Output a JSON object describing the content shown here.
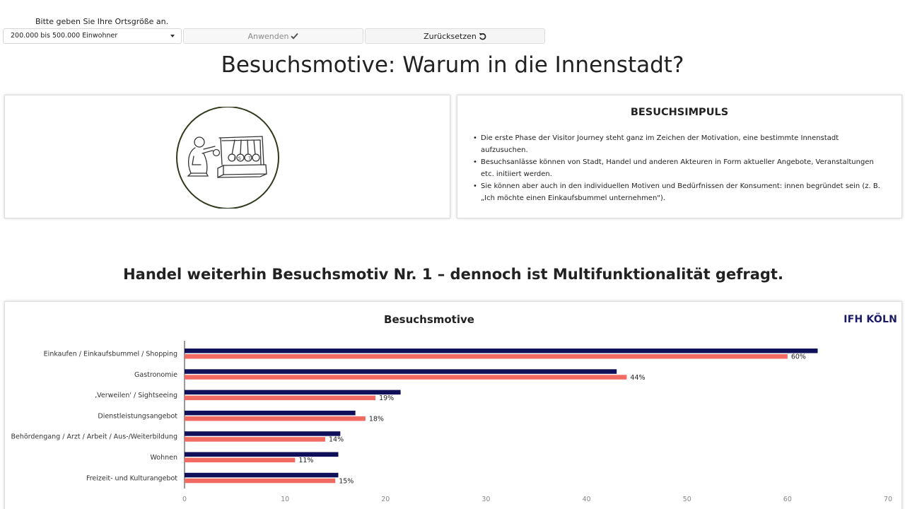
{
  "filter": {
    "label": "Bitte geben Sie Ihre Ortsgröße an.",
    "selected": "200.000 bis 500.000 Einwohner",
    "apply_label": "Anwenden",
    "reset_label": "Zurücksetzen"
  },
  "page": {
    "title": "Besuchsmotive: Warum in die Innenstadt?"
  },
  "impulse": {
    "title": "BESUCHSIMPULS",
    "items": [
      "Die erste Phase der Visitor Journey steht ganz im Zeichen der Motivation, eine bestimmte Innenstadt aufzusuchen.",
      "Besuchsanlässe können von Stadt, Handel und anderen Akteuren in Form aktueller Angebote, Veranstaltungen etc. initiiert werden.",
      "Sie können aber auch in den individuellen Motiven und Bedürfnissen der Konsument: innen begründet sein (z. B. „Ich möchte einen Einkaufsbummel unternehmen\")."
    ]
  },
  "illustration": {
    "sign_text": "ISIT"
  },
  "section": {
    "heading": "Handel weiterhin Besuchsmotiv Nr. 1 – dennoch ist Multifunktionalität gefragt."
  },
  "brand": "IFH KÖLN",
  "colors": {
    "series_total": "#10105a",
    "series_city": "#f26b63"
  },
  "chart_data": {
    "type": "bar",
    "orientation": "horizontal",
    "title": "Besuchsmotive",
    "categories": [
      "Einkaufen / Einkaufsbummel / Shopping",
      "Gastronomie",
      "‚Verweilen' / Sightseeing",
      "Dienstleistungsangebot",
      "Behördengang / Arzt / Arbeit / Aus-/Weiterbildung",
      "Wohnen",
      "Freizeit- und Kulturangebot"
    ],
    "series": [
      {
        "values": [
          63,
          43,
          21.5,
          17,
          15.5,
          15.3,
          15.3
        ]
      },
      {
        "values": [
          60,
          44,
          19,
          18,
          14,
          11,
          15
        ],
        "data_labels": [
          "60%",
          "44%",
          "19%",
          "18%",
          "14%",
          "11%",
          "15%"
        ]
      }
    ],
    "xlim": [
      0,
      70
    ],
    "xticks": [
      "0",
      "10",
      "20",
      "30",
      "40",
      "50",
      "60",
      "70"
    ],
    "grid": false
  }
}
